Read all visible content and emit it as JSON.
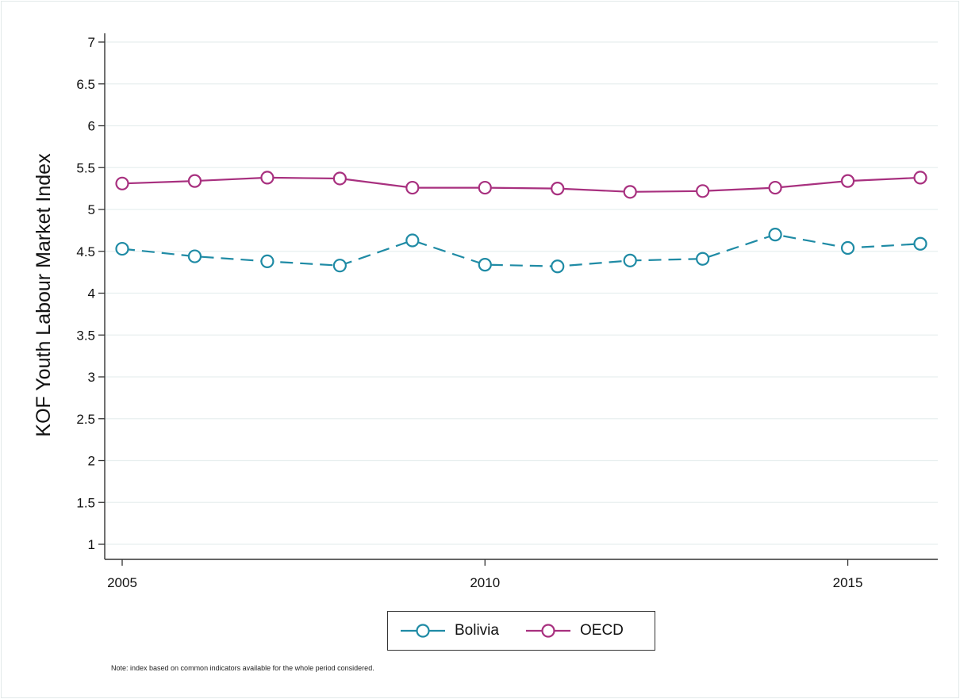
{
  "chart_data": {
    "type": "line",
    "title": "",
    "xlabel": "",
    "ylabel": "KOF Youth Labour Market Index",
    "xlim": [
      2005,
      2016
    ],
    "ylim": [
      1,
      7
    ],
    "x_ticks": [
      2005,
      2010,
      2015
    ],
    "y_ticks": [
      1,
      1.5,
      2,
      2.5,
      3,
      3.5,
      4,
      4.5,
      5,
      5.5,
      6,
      6.5,
      7
    ],
    "y_tick_labels": [
      "1",
      "1.5",
      "2",
      "2.5",
      "3",
      "3.5",
      "4",
      "4.5",
      "5",
      "5.5",
      "6",
      "6.5",
      "7"
    ],
    "x_tick_labels": [
      "2005",
      "2010",
      "2015"
    ],
    "grid": true,
    "legend_position": "bottom",
    "x": [
      2005,
      2006,
      2007,
      2008,
      2009,
      2010,
      2011,
      2012,
      2013,
      2014,
      2015,
      2016
    ],
    "series": [
      {
        "name": "Bolivia",
        "color": "#1f8ba5",
        "dash": "dashed",
        "marker": "hollow-circle",
        "values": [
          4.53,
          4.44,
          4.38,
          4.33,
          4.63,
          4.34,
          4.32,
          4.39,
          4.41,
          4.7,
          4.54,
          4.59
        ]
      },
      {
        "name": "OECD",
        "color": "#a8307f",
        "dash": "solid",
        "marker": "hollow-circle",
        "values": [
          5.31,
          5.34,
          5.38,
          5.37,
          5.26,
          5.26,
          5.25,
          5.21,
          5.22,
          5.26,
          5.34,
          5.38
        ]
      }
    ],
    "note": "Note: index based on common indicators available for the whole period considered."
  }
}
